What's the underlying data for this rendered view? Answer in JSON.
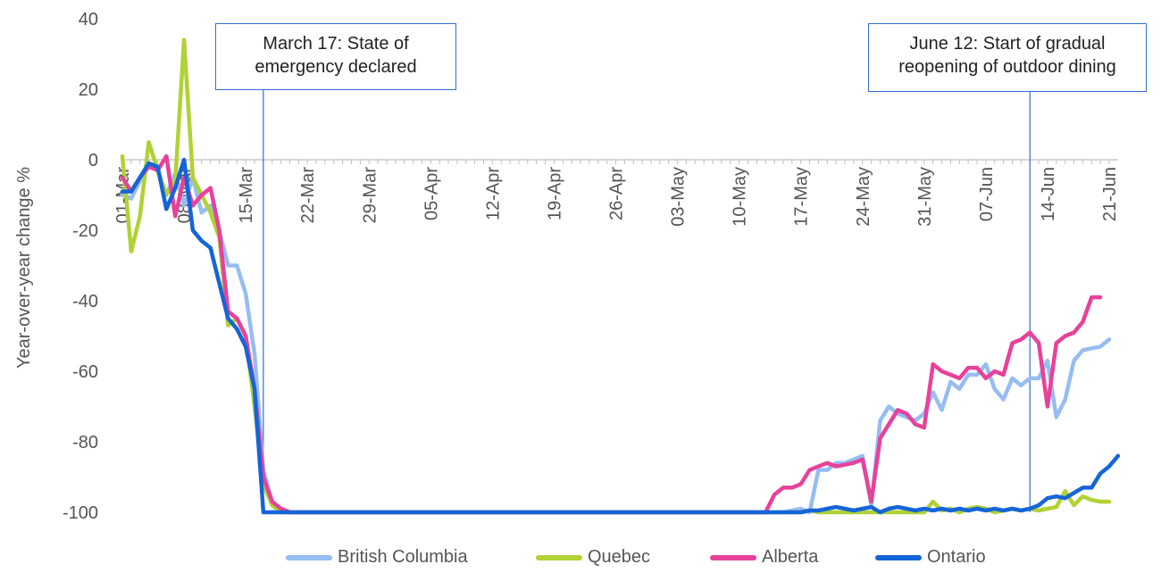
{
  "chart_data": {
    "type": "line",
    "ylabel": "Year-over-year change %",
    "xlabel": "",
    "ylim": [
      -100,
      40
    ],
    "yticks": [
      40,
      20,
      0,
      -20,
      -40,
      -60,
      -80,
      -100
    ],
    "start_date": "2020-03-01",
    "end_date": "2020-06-21",
    "x_ticks": [
      "01-Mar",
      "08-Mar",
      "15-Mar",
      "22-Mar",
      "29-Mar",
      "05-Apr",
      "12-Apr",
      "19-Apr",
      "26-Apr",
      "03-May",
      "10-May",
      "17-May",
      "24-May",
      "31-May",
      "07-Jun",
      "14-Jun",
      "21-Jun"
    ],
    "grid": false,
    "legend_position": "bottom",
    "annotations": [
      {
        "date": "2020-03-17",
        "lines": [
          "March 17: State of",
          "emergency declared"
        ]
      },
      {
        "date": "2020-06-12",
        "lines": [
          "June 12: Start of gradual",
          "reopening of outdoor dining"
        ]
      }
    ],
    "series": [
      {
        "name": "British Columbia",
        "color": "#96bdf2",
        "points": [
          [
            "2020-03-01",
            -10
          ],
          [
            "2020-03-02",
            -11
          ],
          [
            "2020-03-03",
            -6
          ],
          [
            "2020-03-04",
            -1
          ],
          [
            "2020-03-05",
            -3
          ],
          [
            "2020-03-06",
            -10
          ],
          [
            "2020-03-07",
            -4
          ],
          [
            "2020-03-08",
            -13
          ],
          [
            "2020-03-09",
            -5
          ],
          [
            "2020-03-10",
            -15
          ],
          [
            "2020-03-11",
            -13
          ],
          [
            "2020-03-12",
            -20
          ],
          [
            "2020-03-13",
            -30
          ],
          [
            "2020-03-14",
            -30
          ],
          [
            "2020-03-15",
            -38
          ],
          [
            "2020-03-16",
            -55
          ],
          [
            "2020-03-17",
            -88
          ],
          [
            "2020-03-18",
            -97
          ],
          [
            "2020-03-19",
            -99
          ],
          [
            "2020-03-20",
            -100
          ],
          [
            "2020-05-15",
            -100
          ],
          [
            "2020-05-16",
            -99.5
          ],
          [
            "2020-05-17",
            -99
          ],
          [
            "2020-05-18",
            -100
          ],
          [
            "2020-05-19",
            -88
          ],
          [
            "2020-05-20",
            -88
          ],
          [
            "2020-05-21",
            -86
          ],
          [
            "2020-05-22",
            -86
          ],
          [
            "2020-05-23",
            -85
          ],
          [
            "2020-05-24",
            -84
          ],
          [
            "2020-05-25",
            -98
          ],
          [
            "2020-05-26",
            -74
          ],
          [
            "2020-05-27",
            -70
          ],
          [
            "2020-05-28",
            -72
          ],
          [
            "2020-05-29",
            -73
          ],
          [
            "2020-05-30",
            -74
          ],
          [
            "2020-05-31",
            -72
          ],
          [
            "2020-06-01",
            -66
          ],
          [
            "2020-06-02",
            -71
          ],
          [
            "2020-06-03",
            -63
          ],
          [
            "2020-06-04",
            -65
          ],
          [
            "2020-06-05",
            -61
          ],
          [
            "2020-06-06",
            -61
          ],
          [
            "2020-06-07",
            -58
          ],
          [
            "2020-06-08",
            -65
          ],
          [
            "2020-06-09",
            -68
          ],
          [
            "2020-06-10",
            -62
          ],
          [
            "2020-06-11",
            -64
          ],
          [
            "2020-06-12",
            -62
          ],
          [
            "2020-06-13",
            -62
          ],
          [
            "2020-06-14",
            -57
          ],
          [
            "2020-06-15",
            -73
          ],
          [
            "2020-06-16",
            -68
          ],
          [
            "2020-06-17",
            -57
          ],
          [
            "2020-06-18",
            -54
          ],
          [
            "2020-06-19",
            -53.5
          ],
          [
            "2020-06-20",
            -53
          ],
          [
            "2020-06-21",
            -51
          ]
        ]
      },
      {
        "name": "Quebec",
        "color": "#b0d235",
        "points": [
          [
            "2020-03-01",
            1
          ],
          [
            "2020-03-02",
            -26
          ],
          [
            "2020-03-03",
            -16
          ],
          [
            "2020-03-04",
            5
          ],
          [
            "2020-03-05",
            -3
          ],
          [
            "2020-03-06",
            -10
          ],
          [
            "2020-03-07",
            -6
          ],
          [
            "2020-03-08",
            34
          ],
          [
            "2020-03-09",
            -5
          ],
          [
            "2020-03-10",
            -10
          ],
          [
            "2020-03-11",
            -15
          ],
          [
            "2020-03-12",
            -22
          ],
          [
            "2020-03-13",
            -47
          ],
          [
            "2020-03-14",
            -45
          ],
          [
            "2020-03-15",
            -50
          ],
          [
            "2020-03-16",
            -70
          ],
          [
            "2020-03-17",
            -92
          ],
          [
            "2020-03-18",
            -98
          ],
          [
            "2020-03-19",
            -100
          ],
          [
            "2020-05-17",
            -100
          ],
          [
            "2020-05-18",
            -99.5
          ],
          [
            "2020-05-19",
            -100
          ],
          [
            "2020-05-31",
            -100
          ],
          [
            "2020-06-01",
            -97
          ],
          [
            "2020-06-02",
            -99.5
          ],
          [
            "2020-06-03",
            -99
          ],
          [
            "2020-06-04",
            -100
          ],
          [
            "2020-06-05",
            -99
          ],
          [
            "2020-06-06",
            -98.5
          ],
          [
            "2020-06-07",
            -99
          ],
          [
            "2020-06-08",
            -100
          ],
          [
            "2020-06-09",
            -99.5
          ],
          [
            "2020-06-10",
            -99
          ],
          [
            "2020-06-11",
            -99.5
          ],
          [
            "2020-06-12",
            -99
          ],
          [
            "2020-06-13",
            -99.5
          ],
          [
            "2020-06-14",
            -99
          ],
          [
            "2020-06-15",
            -98.5
          ],
          [
            "2020-06-16",
            -94
          ],
          [
            "2020-06-17",
            -98
          ],
          [
            "2020-06-18",
            -95.5
          ],
          [
            "2020-06-19",
            -96.5
          ],
          [
            "2020-06-20",
            -97
          ],
          [
            "2020-06-21",
            -97
          ]
        ]
      },
      {
        "name": "Alberta",
        "color": "#e8419a",
        "points": [
          [
            "2020-03-01",
            -5
          ],
          [
            "2020-03-02",
            -9
          ],
          [
            "2020-03-03",
            -5
          ],
          [
            "2020-03-04",
            -2
          ],
          [
            "2020-03-05",
            -3
          ],
          [
            "2020-03-06",
            1
          ],
          [
            "2020-03-07",
            -16
          ],
          [
            "2020-03-08",
            -5
          ],
          [
            "2020-03-09",
            -13
          ],
          [
            "2020-03-10",
            -10
          ],
          [
            "2020-03-11",
            -8
          ],
          [
            "2020-03-12",
            -20
          ],
          [
            "2020-03-13",
            -43
          ],
          [
            "2020-03-14",
            -45
          ],
          [
            "2020-03-15",
            -50
          ],
          [
            "2020-03-16",
            -65
          ],
          [
            "2020-03-17",
            -90
          ],
          [
            "2020-03-18",
            -97
          ],
          [
            "2020-03-19",
            -99
          ],
          [
            "2020-03-20",
            -100
          ],
          [
            "2020-05-13",
            -100
          ],
          [
            "2020-05-14",
            -95
          ],
          [
            "2020-05-15",
            -93
          ],
          [
            "2020-05-16",
            -93
          ],
          [
            "2020-05-17",
            -92
          ],
          [
            "2020-05-18",
            -88
          ],
          [
            "2020-05-19",
            -87
          ],
          [
            "2020-05-20",
            -86
          ],
          [
            "2020-05-21",
            -87
          ],
          [
            "2020-05-22",
            -86.5
          ],
          [
            "2020-05-23",
            -86
          ],
          [
            "2020-05-24",
            -85
          ],
          [
            "2020-05-25",
            -97
          ],
          [
            "2020-05-26",
            -79
          ],
          [
            "2020-05-27",
            -75
          ],
          [
            "2020-05-28",
            -71
          ],
          [
            "2020-05-29",
            -72
          ],
          [
            "2020-05-30",
            -75
          ],
          [
            "2020-05-31",
            -76
          ],
          [
            "2020-06-01",
            -58
          ],
          [
            "2020-06-02",
            -60
          ],
          [
            "2020-06-03",
            -61
          ],
          [
            "2020-06-04",
            -62
          ],
          [
            "2020-06-05",
            -59
          ],
          [
            "2020-06-06",
            -59
          ],
          [
            "2020-06-07",
            -62
          ],
          [
            "2020-06-08",
            -60
          ],
          [
            "2020-06-09",
            -61
          ],
          [
            "2020-06-10",
            -52
          ],
          [
            "2020-06-11",
            -51
          ],
          [
            "2020-06-12",
            -49
          ],
          [
            "2020-06-13",
            -52
          ],
          [
            "2020-06-14",
            -70
          ],
          [
            "2020-06-15",
            -52
          ],
          [
            "2020-06-16",
            -50
          ],
          [
            "2020-06-17",
            -49
          ],
          [
            "2020-06-18",
            -46
          ],
          [
            "2020-06-19",
            -39
          ],
          [
            "2020-06-20",
            -39
          ]
        ]
      },
      {
        "name": "Ontario",
        "color": "#1565d8",
        "points": [
          [
            "2020-03-01",
            -9
          ],
          [
            "2020-03-02",
            -9
          ],
          [
            "2020-03-03",
            -5
          ],
          [
            "2020-03-04",
            -1
          ],
          [
            "2020-03-05",
            -2
          ],
          [
            "2020-03-06",
            -14
          ],
          [
            "2020-03-07",
            -8
          ],
          [
            "2020-03-08",
            0
          ],
          [
            "2020-03-09",
            -20
          ],
          [
            "2020-03-10",
            -23
          ],
          [
            "2020-03-11",
            -25
          ],
          [
            "2020-03-12",
            -35
          ],
          [
            "2020-03-13",
            -45
          ],
          [
            "2020-03-14",
            -48
          ],
          [
            "2020-03-15",
            -53
          ],
          [
            "2020-03-16",
            -65
          ],
          [
            "2020-03-17",
            -100
          ],
          [
            "2020-05-17",
            -100
          ],
          [
            "2020-05-18",
            -99.5
          ],
          [
            "2020-05-19",
            -99.5
          ],
          [
            "2020-05-20",
            -99
          ],
          [
            "2020-05-21",
            -98.5
          ],
          [
            "2020-05-22",
            -99
          ],
          [
            "2020-05-23",
            -99.5
          ],
          [
            "2020-05-24",
            -99
          ],
          [
            "2020-05-25",
            -98.5
          ],
          [
            "2020-05-26",
            -100
          ],
          [
            "2020-05-27",
            -99
          ],
          [
            "2020-05-28",
            -98.5
          ],
          [
            "2020-05-29",
            -99
          ],
          [
            "2020-05-30",
            -99.5
          ],
          [
            "2020-05-31",
            -99
          ],
          [
            "2020-06-01",
            -99.5
          ],
          [
            "2020-06-02",
            -99
          ],
          [
            "2020-06-03",
            -99.5
          ],
          [
            "2020-06-04",
            -99
          ],
          [
            "2020-06-05",
            -99.5
          ],
          [
            "2020-06-06",
            -99
          ],
          [
            "2020-06-07",
            -99.5
          ],
          [
            "2020-06-08",
            -99
          ],
          [
            "2020-06-09",
            -99.5
          ],
          [
            "2020-06-10",
            -99
          ],
          [
            "2020-06-11",
            -99.5
          ],
          [
            "2020-06-12",
            -99
          ],
          [
            "2020-06-13",
            -98
          ],
          [
            "2020-06-14",
            -96
          ],
          [
            "2020-06-15",
            -95.5
          ],
          [
            "2020-06-16",
            -96
          ],
          [
            "2020-06-17",
            -94.5
          ],
          [
            "2020-06-18",
            -93
          ],
          [
            "2020-06-19",
            -93
          ],
          [
            "2020-06-20",
            -89
          ],
          [
            "2020-06-21",
            -87
          ],
          [
            "2020-06-22",
            -84
          ]
        ]
      }
    ]
  }
}
